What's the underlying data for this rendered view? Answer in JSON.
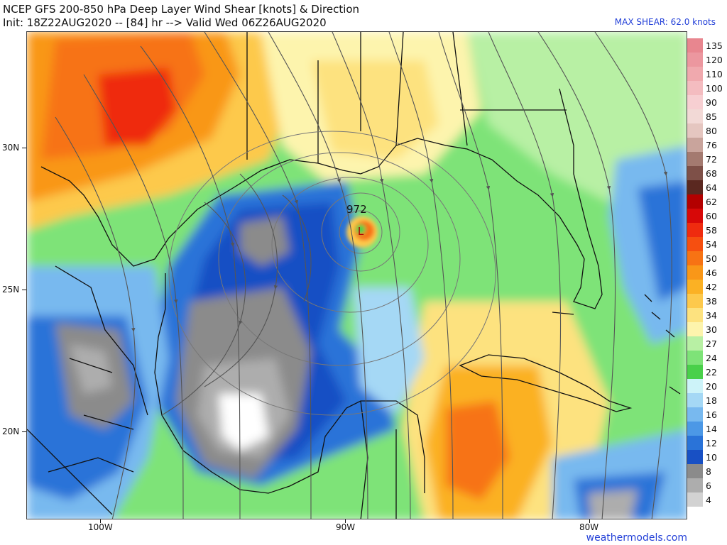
{
  "header": {
    "title": "NCEP GFS 200-850 hPa Deep Layer Wind Shear [knots] & Direction",
    "init_line": "Init: 18Z22AUG2020 -- [84] hr --> Valid Wed 06Z26AUG2020",
    "max_shear": "MAX SHEAR: 62.0 knots"
  },
  "map": {
    "lat_labels": [
      "30N",
      "25N",
      "20N"
    ],
    "lon_labels": [
      "100W",
      "90W",
      "80W"
    ],
    "storm_pressure": "972",
    "low_marker": "L",
    "credit": "weathermodels.com"
  },
  "legend": {
    "items": [
      {
        "label": "135",
        "color": "#e8868f"
      },
      {
        "label": "120",
        "color": "#ec979f"
      },
      {
        "label": "110",
        "color": "#f0a9ae"
      },
      {
        "label": "100",
        "color": "#f4bcc0"
      },
      {
        "label": "90",
        "color": "#f7cfd2"
      },
      {
        "label": "85",
        "color": "#f2d9d6"
      },
      {
        "label": "80",
        "color": "#e5c6c0"
      },
      {
        "label": "76",
        "color": "#c9a49c"
      },
      {
        "label": "72",
        "color": "#a47a70"
      },
      {
        "label": "68",
        "color": "#7e5048"
      },
      {
        "label": "64",
        "color": "#5a2820"
      },
      {
        "label": "62",
        "color": "#b30000"
      },
      {
        "label": "60",
        "color": "#d70808"
      },
      {
        "label": "58",
        "color": "#ef2b0f"
      },
      {
        "label": "54",
        "color": "#f64f10"
      },
      {
        "label": "50",
        "color": "#f77314"
      },
      {
        "label": "46",
        "color": "#f99718"
      },
      {
        "label": "42",
        "color": "#fbb124"
      },
      {
        "label": "38",
        "color": "#fdc94c"
      },
      {
        "label": "34",
        "color": "#fde27f"
      },
      {
        "label": "30",
        "color": "#fdf4ad"
      },
      {
        "label": "27",
        "color": "#b8f0a4"
      },
      {
        "label": "24",
        "color": "#7ee378"
      },
      {
        "label": "22",
        "color": "#49d04a"
      },
      {
        "label": "20",
        "color": "#cdf3f9"
      },
      {
        "label": "18",
        "color": "#a5d8f5"
      },
      {
        "label": "16",
        "color": "#78b9ef"
      },
      {
        "label": "14",
        "color": "#4c98e6"
      },
      {
        "label": "12",
        "color": "#2a73d8"
      },
      {
        "label": "10",
        "color": "#1850c4"
      },
      {
        "label": "8",
        "color": "#8b8b8b"
      },
      {
        "label": "6",
        "color": "#adadad"
      },
      {
        "label": "4",
        "color": "#d2d2d2"
      }
    ]
  },
  "colors": {
    "header_blue": "#2340d8",
    "land_border": "#111111",
    "streamline": "#555555"
  }
}
